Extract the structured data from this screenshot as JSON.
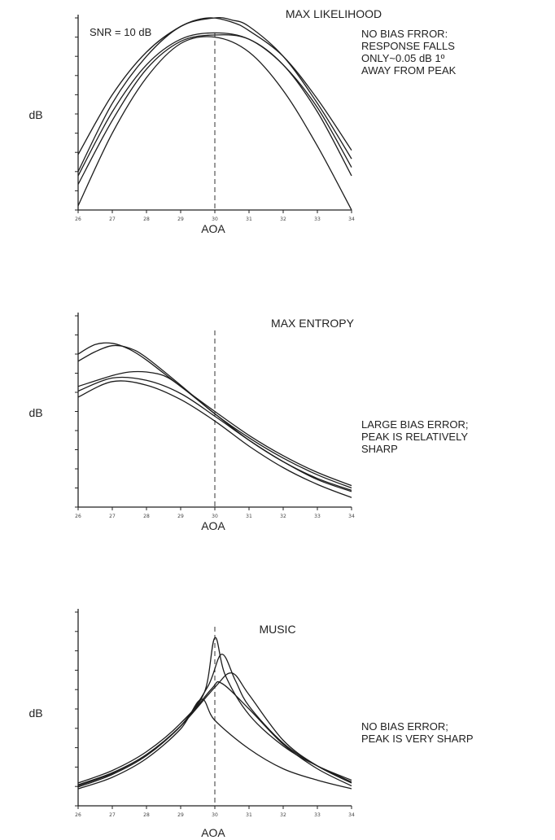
{
  "chart_data": [
    {
      "type": "line",
      "title": "MAX LIKELIHOOD",
      "xlabel": "AOA",
      "ylabel": "dB",
      "annotation_top": "SNR = 10 dB",
      "annotation": [
        "NO BIAS FRROR:",
        "RESPONSE FALLS",
        "ONLY~0.05 dB 1º",
        "AWAY FROM PEAK"
      ],
      "xlim": [
        26,
        34
      ],
      "ylim": [
        -4.5,
        0
      ],
      "peak_marker_x": 30,
      "x_ticks": [
        "26",
        "27",
        "28",
        "29",
        "30",
        "31",
        "32",
        "33",
        "34"
      ],
      "y_ticks": [],
      "series": [
        {
          "x": [
            26,
            27,
            28,
            29,
            29.8,
            30.5,
            31,
            32,
            33,
            34
          ],
          "y": [
            -3.2,
            -1.8,
            -0.8,
            -0.2,
            0,
            -0.1,
            -0.3,
            -0.9,
            -1.9,
            -3.1
          ]
        },
        {
          "x": [
            26,
            27,
            28,
            29,
            30,
            30.5,
            31,
            32,
            33,
            34
          ],
          "y": [
            -3.6,
            -2.0,
            -0.9,
            -0.2,
            0,
            -0.05,
            -0.2,
            -0.9,
            -2.0,
            -3.3
          ]
        },
        {
          "x": [
            26,
            27,
            28,
            29,
            30,
            31,
            32,
            33,
            34
          ],
          "y": [
            -3.7,
            -2.2,
            -1.1,
            -0.5,
            -0.35,
            -0.5,
            -1.1,
            -2.1,
            -3.5
          ]
        },
        {
          "x": [
            26,
            27,
            28,
            29,
            30,
            31,
            32,
            33,
            34
          ],
          "y": [
            -3.9,
            -2.4,
            -1.2,
            -0.55,
            -0.4,
            -0.5,
            -1.1,
            -2.2,
            -3.7
          ]
        },
        {
          "x": [
            26,
            27,
            28,
            29,
            30,
            31,
            32,
            33,
            34
          ],
          "y": [
            -4.4,
            -2.7,
            -1.4,
            -0.6,
            -0.45,
            -0.8,
            -1.7,
            -3.0,
            -4.5
          ]
        }
      ]
    },
    {
      "type": "line",
      "title": "MAX ENTROPY",
      "xlabel": "AOA",
      "ylabel": "dB",
      "annotation": [
        "LARGE BIAS ERROR;",
        "PEAK IS RELATIVELY",
        "SHARP"
      ],
      "xlim": [
        26,
        34
      ],
      "ylim": [
        2,
        18
      ],
      "peak_marker_x": 30,
      "x_ticks": [
        "26",
        "27",
        "28",
        "29",
        "30",
        "31",
        "32",
        "33",
        "34"
      ],
      "y_ticks": [],
      "series": [
        {
          "x": [
            26,
            26.5,
            27,
            27.5,
            28,
            29,
            30,
            31,
            32,
            33,
            34
          ],
          "y": [
            14.8,
            15.6,
            15.7,
            15.2,
            14.3,
            12.1,
            10.0,
            8.0,
            6.3,
            4.9,
            3.8
          ]
        },
        {
          "x": [
            26,
            26.5,
            27,
            27.5,
            28,
            29,
            30,
            31,
            32,
            33,
            34
          ],
          "y": [
            14.2,
            15.0,
            15.5,
            15.3,
            14.5,
            12.2,
            9.8,
            7.8,
            6.1,
            4.7,
            3.6
          ]
        },
        {
          "x": [
            26,
            27,
            27.5,
            28,
            28.5,
            29,
            30,
            31,
            32,
            33,
            34
          ],
          "y": [
            12.1,
            13.0,
            13.3,
            13.3,
            13.0,
            12.1,
            9.8,
            7.6,
            5.8,
            4.4,
            3.4
          ]
        },
        {
          "x": [
            26,
            27,
            28,
            29,
            30,
            31,
            32,
            33,
            34
          ],
          "y": [
            11.7,
            12.8,
            12.6,
            11.5,
            9.6,
            7.6,
            5.8,
            4.3,
            3.3
          ]
        },
        {
          "x": [
            26,
            27,
            28,
            29,
            30,
            31,
            32,
            33,
            34
          ],
          "y": [
            11.2,
            12.5,
            12.2,
            11.0,
            9.2,
            7.1,
            5.3,
            3.9,
            2.8
          ]
        }
      ]
    },
    {
      "type": "line",
      "title": "MUSIC",
      "xlabel": "AOA",
      "ylabel": "dB",
      "annotation": [
        "NO BIAS ERROR;",
        "PEAK IS VERY SHARP"
      ],
      "xlim": [
        26,
        34
      ],
      "ylim": [
        8,
        42
      ],
      "peak_marker_x": 30,
      "x_ticks": [
        "26",
        "27",
        "28",
        "29",
        "30",
        "31",
        "32",
        "33",
        "34"
      ],
      "y_ticks": [],
      "series": [
        {
          "x": [
            26,
            27,
            28,
            29,
            29.7,
            30,
            30.3,
            31,
            32,
            33,
            34
          ],
          "y": [
            12,
            14.2,
            17.5,
            22.5,
            28,
            37.5,
            31,
            24,
            18.5,
            15,
            12.5
          ]
        },
        {
          "x": [
            26,
            27,
            28,
            29,
            29.8,
            30.2,
            30.6,
            31,
            32,
            33,
            34
          ],
          "y": [
            11.7,
            13.8,
            17,
            22,
            29,
            34.6,
            30,
            25.5,
            19,
            15,
            12.2
          ]
        },
        {
          "x": [
            26,
            27,
            28,
            29,
            30,
            30.5,
            31,
            32,
            33,
            34
          ],
          "y": [
            11.5,
            13.7,
            17,
            22,
            28.8,
            31.3,
            27.5,
            19.5,
            15,
            12
          ]
        },
        {
          "x": [
            26,
            27,
            28,
            29,
            29.9,
            30.2,
            31,
            32,
            33,
            34
          ],
          "y": [
            11.3,
            13.5,
            16.8,
            22,
            28.5,
            29.5,
            25,
            18.8,
            14.5,
            11.5
          ]
        },
        {
          "x": [
            26,
            27,
            28,
            29,
            29.6,
            30,
            31,
            32,
            33,
            34
          ],
          "y": [
            11,
            13,
            16.3,
            21.5,
            26.7,
            23,
            18,
            14.5,
            12.5,
            11
          ]
        }
      ]
    }
  ]
}
